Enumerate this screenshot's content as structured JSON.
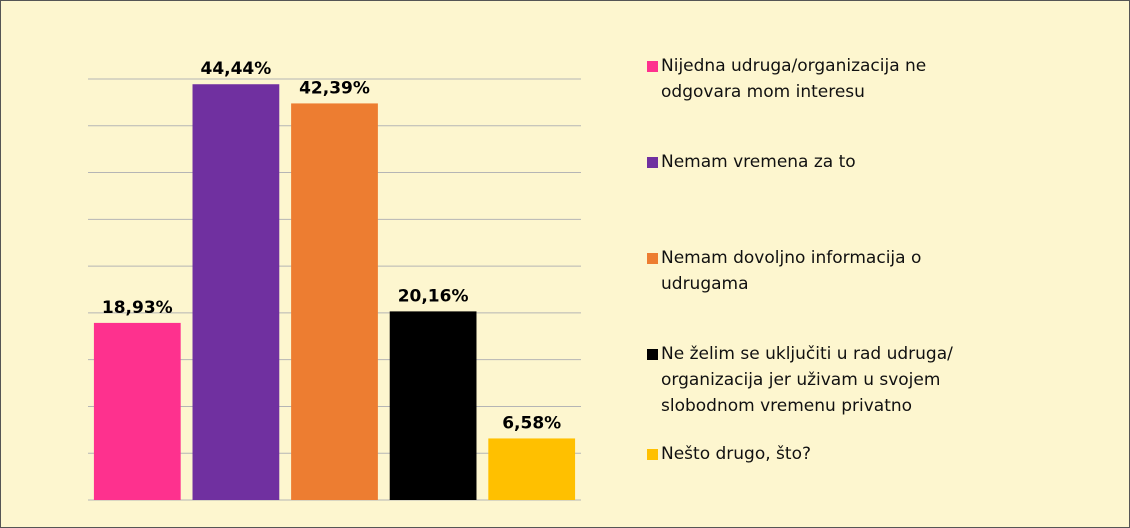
{
  "chart_data": {
    "type": "bar",
    "categories": [
      "Nijedna udruga/organizacija ne odgovara mom interesu",
      "Nemam vremena za to",
      "Nemam dovoljno informacija o udrugama",
      "Ne želim se uključiti u rad udruga/ organizacija jer uživam u svojem slobodnom vremenu privatno",
      "Nešto drugo, što?"
    ],
    "values": [
      18.93,
      44.44,
      42.39,
      20.16,
      6.58
    ],
    "value_labels": [
      "18,93%",
      "44,44%",
      "42,39%",
      "20,16%",
      "6,58%"
    ],
    "colors": [
      "#fe318e",
      "#7030a0",
      "#ed7d31",
      "#000000",
      "#ffc000"
    ],
    "ylim": [
      0,
      45
    ],
    "yticks": [
      0,
      5,
      10,
      15,
      20,
      25,
      30,
      35,
      40,
      45
    ],
    "grid": true
  }
}
